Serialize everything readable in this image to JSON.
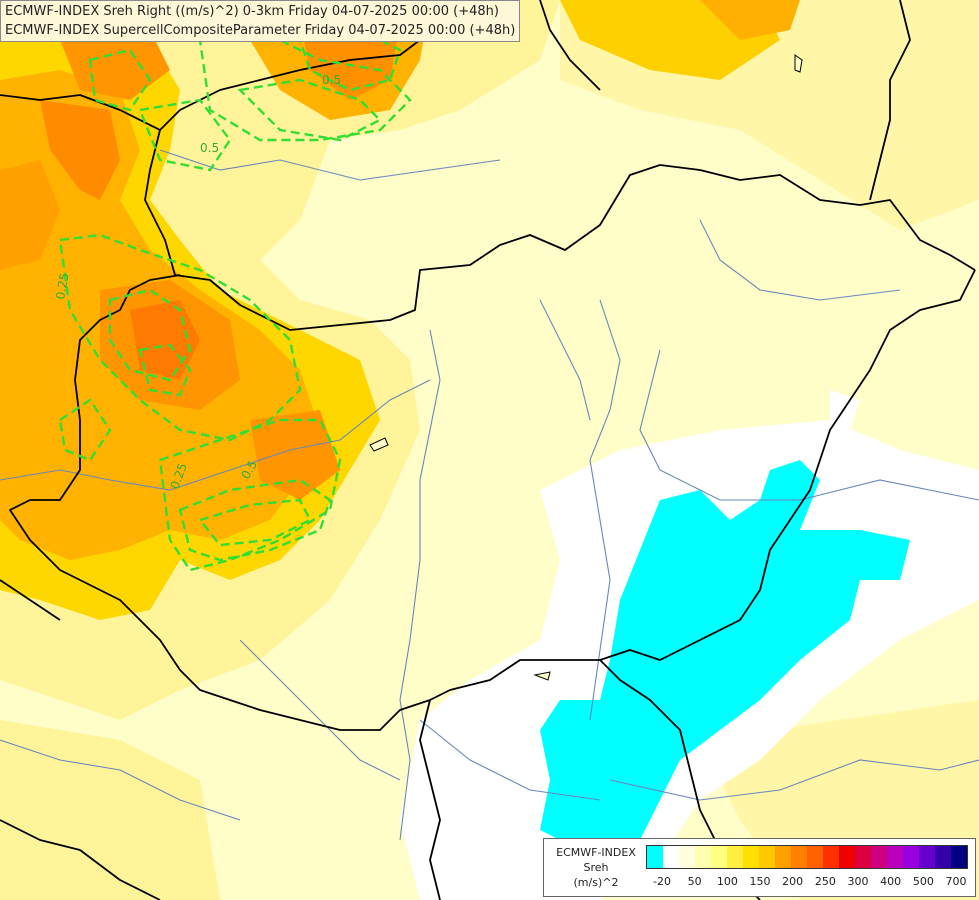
{
  "header": {
    "line1": "ECMWF-INDEX Sreh Right ((m/s)^2) 0-3km Friday 04-07-2025 00:00 (+48h)",
    "line2": "ECMWF-INDEX SupercellCompositeParameter Friday 04-07-2025 00:00 (+48h)"
  },
  "contour_labels": [
    "0.5",
    "0.5",
    "0.25",
    "0.25",
    "0.5"
  ],
  "legend": {
    "source": "ECMWF-INDEX",
    "parameter": "Sreh",
    "unit": "(m/s)^2",
    "ticks": [
      "-20",
      "50",
      "100",
      "150",
      "200",
      "250",
      "300",
      "400",
      "500",
      "700"
    ],
    "colors": [
      "#00ffff",
      "#ffffff",
      "#ffffe0",
      "#ffffb0",
      "#ffff80",
      "#fff040",
      "#ffe000",
      "#ffc800",
      "#ffa000",
      "#ff8000",
      "#ff6000",
      "#ff3000",
      "#ee0000",
      "#dd0040",
      "#cc0080",
      "#bb00bb",
      "#9900dd",
      "#6600cc",
      "#3300aa",
      "#000080"
    ]
  },
  "colors": {
    "background": "#fffec8",
    "scp_contour": "#33dd33",
    "borders": "#000000",
    "rivers": "#6688bb"
  }
}
